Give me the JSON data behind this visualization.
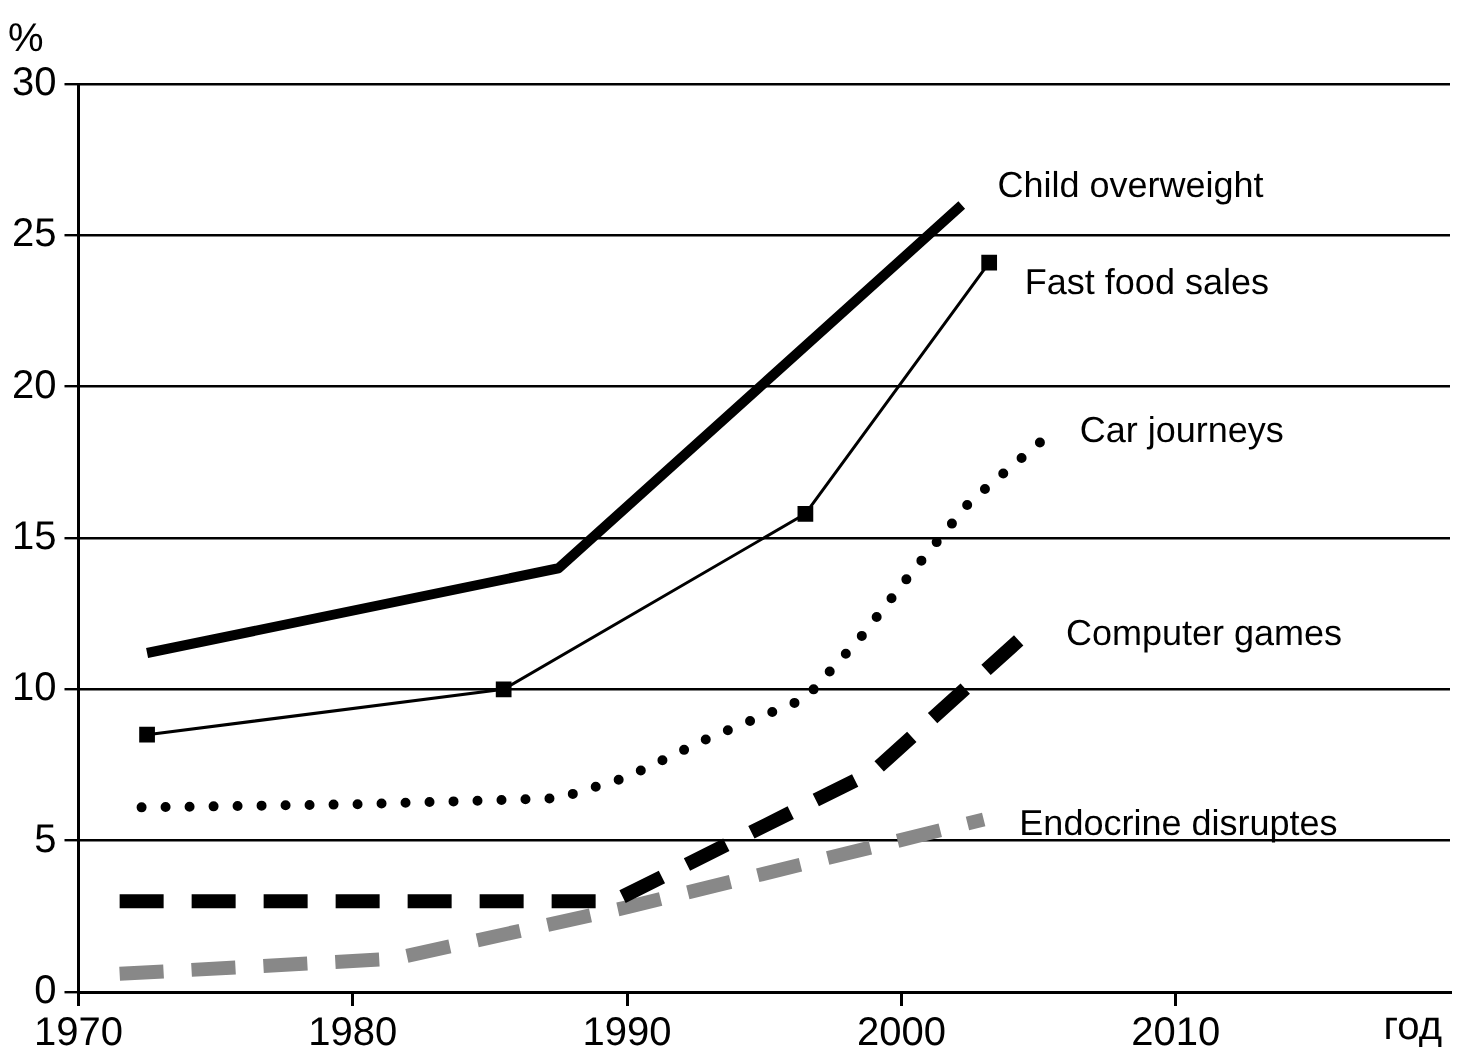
{
  "chart_data": {
    "type": "line",
    "xlabel": "год",
    "ylabel": "%",
    "xlim": [
      1970,
      2020
    ],
    "xticks": [
      1970,
      1980,
      1990,
      2000,
      2010
    ],
    "ylim": [
      0,
      30
    ],
    "yticks": [
      0,
      5,
      10,
      15,
      20,
      25,
      30
    ],
    "grid": "y",
    "legend": false,
    "series": [
      {
        "name": "Child overweight",
        "color": "#000000",
        "line_style": "solid",
        "marker": "none",
        "x": [
          1972.5,
          1987.5,
          2002.2
        ],
        "values": [
          11.2,
          14,
          26
        ]
      },
      {
        "name": "Fast food sales",
        "color": "#000000",
        "line_style": "solid",
        "marker": "square",
        "x": [
          1972.5,
          1985.5,
          1996.5,
          2003.2
        ],
        "values": [
          8.5,
          10,
          15.8,
          24.1
        ]
      },
      {
        "name": "Car journeys",
        "color": "#000000",
        "line_style": "dotted",
        "marker": "none",
        "x": [
          1972.3,
          1980,
          1987.5,
          1990,
          1993,
          1996.5,
          1998.5,
          2000.5,
          2002.5,
          2005.5
        ],
        "values": [
          6.1,
          6.2,
          6.4,
          7.1,
          8.4,
          9.7,
          11.7,
          14,
          16.2,
          18.5
        ]
      },
      {
        "name": "Computer games",
        "color": "#000000",
        "line_style": "dashed",
        "marker": "none",
        "x": [
          1971.5,
          1989.5,
          1999,
          2004.5
        ],
        "values": [
          3,
          3,
          7.3,
          11.8
        ]
      },
      {
        "name": "Endocrine disruptes",
        "color": "#888888",
        "line_style": "dashed",
        "marker": "none",
        "x": [
          1971.5,
          1981.5,
          1990,
          1999,
          2003
        ],
        "values": [
          0.6,
          1.1,
          2.8,
          4.8,
          5.7
        ]
      }
    ]
  }
}
